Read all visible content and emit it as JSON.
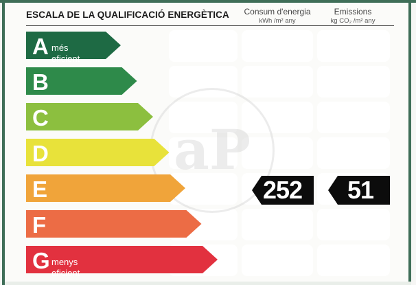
{
  "title": "ESCALA DE LA QUALIFICACIÓ ENERGÈTICA",
  "columns": {
    "consumption": {
      "label": "Consum d'energia",
      "unit": "kWh /m² any"
    },
    "emissions": {
      "label": "Emissions",
      "unit": "kg CO₂ /m² any"
    }
  },
  "ratings": [
    {
      "letter": "A",
      "sublabel": "més eficient",
      "color": "#1e6a44"
    },
    {
      "letter": "B",
      "sublabel": "",
      "color": "#2e8a4a"
    },
    {
      "letter": "C",
      "sublabel": "",
      "color": "#8cbf3f"
    },
    {
      "letter": "D",
      "sublabel": "",
      "color": "#e8e23a"
    },
    {
      "letter": "E",
      "sublabel": "",
      "color": "#f0a43a"
    },
    {
      "letter": "F",
      "sublabel": "",
      "color": "#ec6c45"
    },
    {
      "letter": "G",
      "sublabel": "menys eficient",
      "color": "#e2313f"
    }
  ],
  "current_rating": "E",
  "consumption_value": "252",
  "emissions_value": "51",
  "marker_color": "#0c0c0c",
  "frame_color": "#3f6e58"
}
